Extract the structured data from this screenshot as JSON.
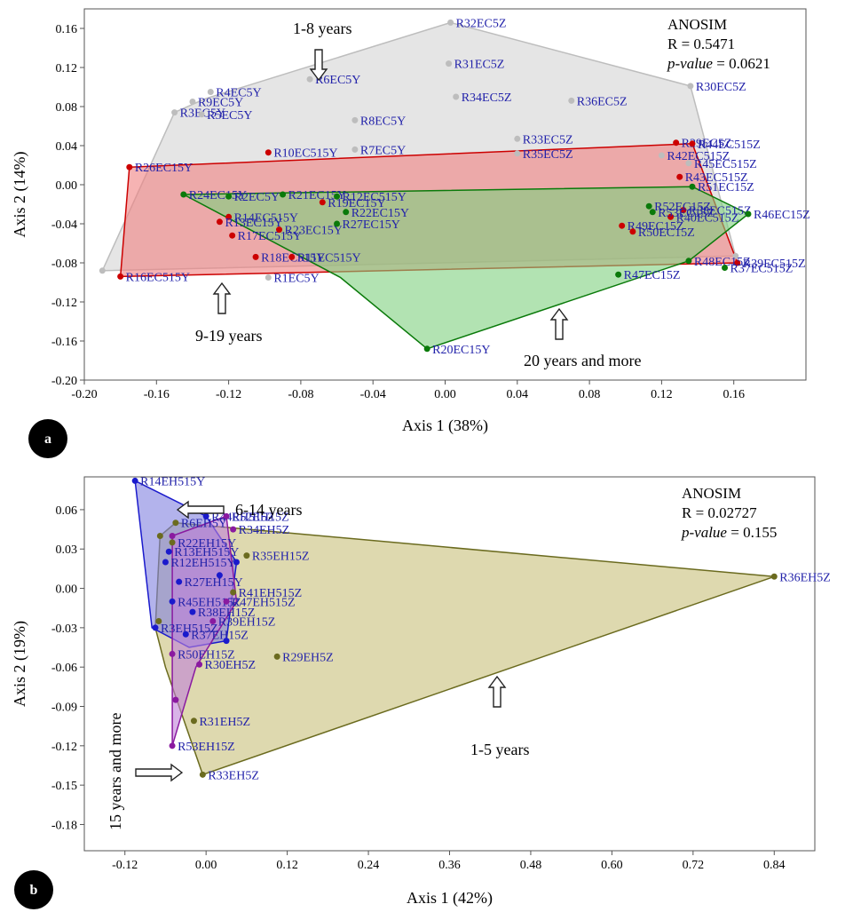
{
  "chart_data": [
    {
      "panel": "a",
      "type": "scatter",
      "xlabel": "Axis 1 (38%)",
      "ylabel": "Axis 2 (14%)",
      "xlim": [
        -0.2,
        0.2
      ],
      "ylim": [
        -0.2,
        0.18
      ],
      "xticks": [
        -0.2,
        -0.16,
        -0.12,
        -0.08,
        -0.04,
        0.0,
        0.04,
        0.08,
        0.12,
        0.16
      ],
      "xtick_labels": [
        "-0.20",
        "-0.16",
        "-0.12",
        "-0.08",
        "-0.04",
        "0.00",
        "0.04",
        "0.08",
        "0.12",
        "0.16"
      ],
      "yticks": [
        -0.2,
        -0.16,
        -0.12,
        -0.08,
        -0.04,
        0.0,
        0.04,
        0.08,
        0.12,
        0.16
      ],
      "ytick_labels": [
        "-0.20",
        "-0.16",
        "-0.12",
        "-0.08",
        "-0.04",
        "0.00",
        "0.04",
        "0.08",
        "0.12",
        "0.16"
      ],
      "grid": false,
      "stats": {
        "title": "ANOSIM",
        "r": "R = 0.5471",
        "p_label": "p-value",
        "p_value": " = 0.0621"
      },
      "groups": [
        {
          "label": "1-8  years",
          "color": "#bdbdbd",
          "fill": "#d3d3d3",
          "hull": [
            [
              0.003,
              0.166
            ],
            [
              0.136,
              0.101
            ],
            [
              0.161,
              -0.073
            ],
            [
              -0.19,
              -0.088
            ],
            [
              -0.15,
              0.074
            ],
            [
              -0.133,
              0.088
            ]
          ],
          "points": [
            {
              "label": "R32EC5Z",
              "x": 0.003,
              "y": 0.166
            },
            {
              "label": "R31EC5Z",
              "x": 0.002,
              "y": 0.124
            },
            {
              "label": "R34EC5Z",
              "x": 0.006,
              "y": 0.09
            },
            {
              "label": "R36EC5Z",
              "x": 0.07,
              "y": 0.086
            },
            {
              "label": "R30EC5Z",
              "x": 0.136,
              "y": 0.101
            },
            {
              "label": "R33EC5Z",
              "x": 0.04,
              "y": 0.047
            },
            {
              "label": "R35EC5Z",
              "x": 0.04,
              "y": 0.032
            },
            {
              "label": "R6EC5Y",
              "x": -0.075,
              "y": 0.108
            },
            {
              "label": "R4EC5Y",
              "x": -0.13,
              "y": 0.095
            },
            {
              "label": "R9EC5Y",
              "x": -0.14,
              "y": 0.085
            },
            {
              "label": "R3EC5Y",
              "x": -0.15,
              "y": 0.074
            },
            {
              "label": "R5EC5Y",
              "x": -0.135,
              "y": 0.072
            },
            {
              "label": "R8EC5Y",
              "x": -0.05,
              "y": 0.066
            },
            {
              "label": "R7EC5Y",
              "x": -0.05,
              "y": 0.036
            },
            {
              "label": "R1EC5Y",
              "x": -0.098,
              "y": -0.095
            },
            {
              "label": "R42EC515Z",
              "x": 0.12,
              "y": 0.03
            },
            {
              "label": "R45EC515Z",
              "x": 0.135,
              "y": 0.022
            },
            {
              "label": "",
              "x": -0.19,
              "y": -0.088
            },
            {
              "label": "",
              "x": 0.161,
              "y": -0.073
            }
          ]
        },
        {
          "label": "9-19 years",
          "color": "#cc0000",
          "fill": "#f08080",
          "hull": [
            [
              -0.175,
              0.018
            ],
            [
              0.137,
              0.042
            ],
            [
              0.162,
              -0.08
            ],
            [
              -0.18,
              -0.094
            ]
          ],
          "points": [
            {
              "label": "R26EC15Y",
              "x": -0.175,
              "y": 0.018
            },
            {
              "label": "R10EC515Y",
              "x": -0.098,
              "y": 0.033
            },
            {
              "label": "R29EC5Z",
              "x": 0.128,
              "y": 0.043
            },
            {
              "label": "R44EC515Z",
              "x": 0.137,
              "y": 0.042
            },
            {
              "label": "R43EC515Z",
              "x": 0.13,
              "y": 0.008
            },
            {
              "label": "R38EC515Z",
              "x": 0.132,
              "y": -0.026
            },
            {
              "label": "R40EC515Z",
              "x": 0.125,
              "y": -0.033
            },
            {
              "label": "R49EC15Z",
              "x": 0.098,
              "y": -0.042
            },
            {
              "label": "R50EC15Z",
              "x": 0.104,
              "y": -0.048
            },
            {
              "label": "R14EC515Y",
              "x": -0.12,
              "y": -0.033
            },
            {
              "label": "R13EC15Y",
              "x": -0.125,
              "y": -0.038
            },
            {
              "label": "R17EC515Y",
              "x": -0.118,
              "y": -0.052
            },
            {
              "label": "R23EC15Y",
              "x": -0.092,
              "y": -0.046
            },
            {
              "label": "R19EC15Y",
              "x": -0.068,
              "y": -0.018
            },
            {
              "label": "R18EC515Y",
              "x": -0.105,
              "y": -0.074
            },
            {
              "label": "R11EC515Y",
              "x": -0.085,
              "y": -0.074
            },
            {
              "label": "R16EC515Y",
              "x": -0.18,
              "y": -0.094
            },
            {
              "label": "R39EC515Z",
              "x": 0.162,
              "y": -0.08
            }
          ]
        },
        {
          "label": "20 years and more",
          "color": "#0a7a0a",
          "fill": "#7fd07f",
          "hull": [
            [
              -0.145,
              -0.01
            ],
            [
              0.137,
              -0.002
            ],
            [
              0.168,
              -0.03
            ],
            [
              0.135,
              -0.078
            ],
            [
              -0.01,
              -0.168
            ],
            [
              -0.058,
              -0.095
            ]
          ],
          "points": [
            {
              "label": "R24EC15Y",
              "x": -0.145,
              "y": -0.01
            },
            {
              "label": "R2EC5Y",
              "x": -0.12,
              "y": -0.012
            },
            {
              "label": "R21EC15Y",
              "x": -0.09,
              "y": -0.01
            },
            {
              "label": "R12EC515Y",
              "x": -0.06,
              "y": -0.012
            },
            {
              "label": "R27EC15Y",
              "x": -0.06,
              "y": -0.04
            },
            {
              "label": "R22EC15Y",
              "x": -0.055,
              "y": -0.028
            },
            {
              "label": "R51EC15Z",
              "x": 0.137,
              "y": -0.002
            },
            {
              "label": "R46EC15Z",
              "x": 0.168,
              "y": -0.03
            },
            {
              "label": "R52EC15Z",
              "x": 0.113,
              "y": -0.022
            },
            {
              "label": "R53EC15Z",
              "x": 0.115,
              "y": -0.028
            },
            {
              "label": "R48EC15Z",
              "x": 0.135,
              "y": -0.078
            },
            {
              "label": "R47EC15Z",
              "x": 0.096,
              "y": -0.092
            },
            {
              "label": "R37EC515Z",
              "x": 0.155,
              "y": -0.085
            },
            {
              "label": "R20EC15Y",
              "x": -0.01,
              "y": -0.168
            }
          ]
        }
      ],
      "annotations": [
        {
          "text": "1-8  years",
          "x": -0.07,
          "y": 0.172
        },
        {
          "text": "9-19 years",
          "x": -0.118,
          "y": -0.15
        },
        {
          "text": "20 years and more",
          "x": 0.063,
          "y": -0.17
        }
      ]
    },
    {
      "panel": "b",
      "type": "scatter",
      "xlabel": "Axis 1 (42%)",
      "ylabel": "Axis 2 (19%)",
      "xlim": [
        -0.18,
        0.9
      ],
      "ylim": [
        -0.2,
        0.085
      ],
      "xticks": [
        -0.12,
        0.0,
        0.12,
        0.24,
        0.36,
        0.48,
        0.6,
        0.72,
        0.84
      ],
      "xtick_labels": [
        "-0.12",
        "0.00",
        "0.12",
        "0.24",
        "0.36",
        "0.48",
        "0.60",
        "0.72",
        "0.84"
      ],
      "yticks": [
        -0.18,
        -0.15,
        -0.12,
        -0.09,
        -0.06,
        -0.03,
        0.0,
        0.03,
        0.06
      ],
      "ytick_labels": [
        "-0.18",
        "-0.15",
        "-0.12",
        "-0.09",
        "-0.06",
        "-0.03",
        "0.00",
        "0.03",
        "0.06"
      ],
      "grid": false,
      "stats": {
        "title": "ANOSIM",
        "r": "R = 0.02727",
        "p_label": "p-value",
        "p_value": " = 0.155"
      },
      "groups": [
        {
          "label": "1-5  years",
          "color": "#6b6b1f",
          "fill": "#c8c07a",
          "hull": [
            [
              -0.045,
              0.05
            ],
            [
              0.84,
              0.009
            ],
            [
              -0.005,
              -0.142
            ],
            [
              -0.06,
              -0.06
            ],
            [
              -0.075,
              -0.03
            ],
            [
              -0.068,
              0.04
            ]
          ],
          "points": [
            {
              "label": "R36EH5Z",
              "x": 0.84,
              "y": 0.009
            },
            {
              "label": "R31EH5Z",
              "x": -0.018,
              "y": -0.101
            },
            {
              "label": "R33EH5Z",
              "x": -0.005,
              "y": -0.142
            },
            {
              "label": "R29EH5Z",
              "x": 0.105,
              "y": -0.052
            },
            {
              "label": "R35EH15Z",
              "x": 0.06,
              "y": 0.025
            },
            {
              "label": "R41EH515Z",
              "x": 0.04,
              "y": -0.003
            },
            {
              "label": "R6EH5Y",
              "x": -0.045,
              "y": 0.05
            },
            {
              "label": "R22EH15Y",
              "x": -0.05,
              "y": 0.035
            },
            {
              "label": "",
              "x": -0.068,
              "y": 0.04
            },
            {
              "label": "",
              "x": -0.07,
              "y": -0.025
            }
          ]
        },
        {
          "label": "6-14  years",
          "color": "#1a1acc",
          "fill": "#8080e0",
          "hull": [
            [
              -0.105,
              0.082
            ],
            [
              0.0,
              0.055
            ],
            [
              0.045,
              0.02
            ],
            [
              0.03,
              -0.04
            ],
            [
              -0.025,
              -0.045
            ],
            [
              -0.08,
              -0.03
            ]
          ],
          "points": [
            {
              "label": "R14EH515Y",
              "x": -0.105,
              "y": 0.082
            },
            {
              "label": "R44EH515Z",
              "x": 0.0,
              "y": 0.055
            },
            {
              "label": "R12EH515Y",
              "x": -0.06,
              "y": 0.02
            },
            {
              "label": "R13EH515Y",
              "x": -0.055,
              "y": 0.028
            },
            {
              "label": "R27EH15Y",
              "x": -0.04,
              "y": 0.005
            },
            {
              "label": "R45EH515Z",
              "x": -0.05,
              "y": -0.01
            },
            {
              "label": "R38EH15Z",
              "x": -0.02,
              "y": -0.018
            },
            {
              "label": "R3EH515Z",
              "x": -0.075,
              "y": -0.03
            },
            {
              "label": "R37EH15Z",
              "x": -0.03,
              "y": -0.035
            },
            {
              "label": "",
              "x": 0.03,
              "y": -0.04
            },
            {
              "label": "",
              "x": 0.045,
              "y": 0.02
            },
            {
              "label": "",
              "x": 0.02,
              "y": 0.01
            }
          ]
        },
        {
          "label": "15 years and more",
          "color": "#8a1aa0",
          "fill": "#c080d8",
          "hull": [
            [
              -0.05,
              0.04
            ],
            [
              0.03,
              0.055
            ],
            [
              0.045,
              -0.01
            ],
            [
              -0.015,
              -0.06
            ],
            [
              -0.05,
              -0.12
            ]
          ],
          "points": [
            {
              "label": "R52EH15Z",
              "x": 0.03,
              "y": 0.055
            },
            {
              "label": "R34EH5Z",
              "x": 0.04,
              "y": 0.045
            },
            {
              "label": "R47EH515Z",
              "x": 0.03,
              "y": -0.01
            },
            {
              "label": "R39EH15Z",
              "x": 0.01,
              "y": -0.025
            },
            {
              "label": "R30EH5Z",
              "x": -0.01,
              "y": -0.058
            },
            {
              "label": "R50EH15Z",
              "x": -0.05,
              "y": -0.05
            },
            {
              "label": "R53EH15Z",
              "x": -0.05,
              "y": -0.12
            },
            {
              "label": "",
              "x": -0.045,
              "y": -0.085
            },
            {
              "label": "",
              "x": -0.05,
              "y": 0.04
            }
          ]
        }
      ],
      "annotations": [
        {
          "text": "6-14  years",
          "x": 0.035,
          "y": 0.063
        },
        {
          "text": "1-5  years",
          "x": 0.43,
          "y": -0.115
        },
        {
          "text": "15 years and more",
          "x": -0.14,
          "y": -0.085
        }
      ]
    }
  ]
}
